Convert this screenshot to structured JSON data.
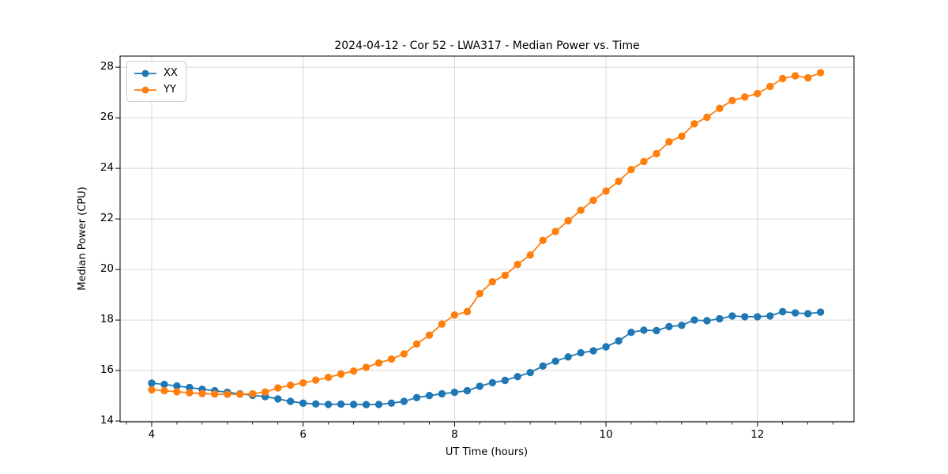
{
  "figure": {
    "title": "2024-04-12 - Cor 52 - LWA317 - Median Power vs. Time"
  },
  "chart_data": {
    "type": "line",
    "title": "2024-04-12 - Cor 52 - LWA317 - Median Power vs. Time",
    "xlabel": "UT Time (hours)",
    "ylabel": "Median Power (CPU)",
    "xlim": [
      3.583,
      13.275
    ],
    "ylim": [
      13.97,
      28.44
    ],
    "xticks": [
      4,
      6,
      8,
      10,
      12
    ],
    "yticks": [
      14,
      16,
      18,
      20,
      22,
      24,
      26,
      28
    ],
    "minor_xtick_step": 0.3333,
    "grid": true,
    "legend_position": "upper-left",
    "marker": "circle",
    "x": [
      4.0,
      4.167,
      4.333,
      4.5,
      4.667,
      4.833,
      5.0,
      5.167,
      5.333,
      5.5,
      5.667,
      5.833,
      6.0,
      6.167,
      6.333,
      6.5,
      6.667,
      6.833,
      7.0,
      7.167,
      7.333,
      7.5,
      7.667,
      7.833,
      8.0,
      8.167,
      8.333,
      8.5,
      8.667,
      8.833,
      9.0,
      9.167,
      9.333,
      9.5,
      9.667,
      9.833,
      10.0,
      10.167,
      10.333,
      10.5,
      10.667,
      10.833,
      11.0,
      11.167,
      11.333,
      11.5,
      11.667,
      11.833,
      12.0,
      12.167,
      12.333,
      12.5,
      12.667,
      12.833
    ],
    "series": [
      {
        "name": "XX",
        "color": "#1f77b4",
        "values": [
          15.5,
          15.45,
          15.39,
          15.33,
          15.26,
          15.2,
          15.14,
          15.08,
          15.02,
          14.97,
          14.88,
          14.78,
          14.71,
          14.68,
          14.66,
          14.67,
          14.66,
          14.65,
          14.66,
          14.71,
          14.78,
          14.93,
          15.01,
          15.08,
          15.14,
          15.2,
          15.38,
          15.52,
          15.61,
          15.76,
          15.92,
          16.18,
          16.37,
          16.54,
          16.7,
          16.78,
          16.94,
          17.17,
          17.51,
          17.6,
          17.58,
          17.74,
          17.79,
          18.0,
          17.97,
          18.05,
          18.16,
          18.13,
          18.13,
          18.16,
          18.33,
          18.28,
          18.25,
          18.31
        ]
      },
      {
        "name": "YY",
        "color": "#ff7f0e",
        "values": [
          15.24,
          15.2,
          15.16,
          15.12,
          15.09,
          15.07,
          15.06,
          15.06,
          15.08,
          15.15,
          15.31,
          15.42,
          15.51,
          15.62,
          15.73,
          15.86,
          15.98,
          16.13,
          16.3,
          16.45,
          16.66,
          17.05,
          17.4,
          17.84,
          18.2,
          18.33,
          19.05,
          19.51,
          19.77,
          20.2,
          20.57,
          21.15,
          21.5,
          21.92,
          22.34,
          22.74,
          23.1,
          23.49,
          23.95,
          24.27,
          24.58,
          25.05,
          25.27,
          25.76,
          26.02,
          26.37,
          26.68,
          26.82,
          26.96,
          27.24,
          27.55,
          27.66,
          27.58,
          27.78
        ]
      }
    ]
  },
  "legend": {
    "items": [
      {
        "label": "XX",
        "color": "#1f77b4"
      },
      {
        "label": "YY",
        "color": "#ff7f0e"
      }
    ]
  },
  "colors": {
    "grid": "#d8d8d8",
    "spine": "#000000",
    "text": "#000000",
    "background": "#ffffff"
  }
}
